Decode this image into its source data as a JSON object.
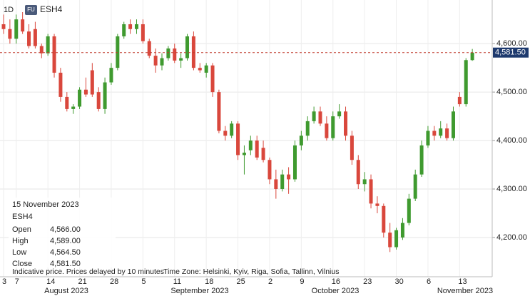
{
  "chart_data": {
    "type": "candlestick",
    "interval": "1D",
    "badge": "FU",
    "symbol": "ESH4",
    "up_color": "#3f9a2f",
    "down_color": "#d9473c",
    "categories": [
      "3",
      null,
      "7",
      null,
      null,
      null,
      null,
      "14",
      null,
      null,
      null,
      null,
      "21",
      null,
      null,
      null,
      null,
      "28",
      null,
      null,
      null,
      null,
      "5",
      null,
      null,
      null,
      null,
      "11",
      null,
      null,
      null,
      null,
      "18",
      null,
      null,
      null,
      null,
      "25",
      null,
      null,
      null,
      null,
      "2",
      null,
      null,
      null,
      null,
      "9",
      null,
      null,
      null,
      null,
      "16",
      null,
      null,
      null,
      null,
      "23",
      null,
      null,
      null,
      null,
      "30",
      null,
      null,
      null,
      null,
      "6",
      null,
      null,
      null,
      null,
      "13",
      null,
      null
    ],
    "months": [
      "August 2023",
      "September 2023",
      "October 2023",
      "November 2023"
    ],
    "open": [
      4640,
      4630,
      4610,
      4650,
      4625,
      4630,
      4595,
      4580,
      4615,
      4540,
      4490,
      4465,
      4470,
      4505,
      4545,
      4500,
      4465,
      4520,
      4550,
      4615,
      4640,
      4630,
      4640,
      4605,
      4575,
      4555,
      4570,
      4590,
      4565,
      4570,
      4615,
      4550,
      4540,
      4555,
      4500,
      4420,
      4410,
      4435,
      4370,
      4380,
      4400,
      4385,
      4360,
      4320,
      4300,
      4330,
      4320,
      4390,
      4410,
      4440,
      4460,
      4435,
      4405,
      4450,
      4460,
      4410,
      4360,
      4310,
      4320,
      4270,
      4265,
      4210,
      4180,
      4200,
      4230,
      4280,
      4330,
      4390,
      4420,
      4410,
      4425,
      4405,
      4490,
      4475,
      4566
    ],
    "high": [
      4660,
      4650,
      4660,
      4665,
      4640,
      4645,
      4600,
      4620,
      4620,
      4550,
      4500,
      4475,
      4510,
      4530,
      4560,
      4510,
      4530,
      4560,
      4620,
      4645,
      4650,
      4650,
      4650,
      4610,
      4590,
      4580,
      4595,
      4600,
      4580,
      4620,
      4625,
      4560,
      4560,
      4560,
      4505,
      4430,
      4440,
      4440,
      4390,
      4410,
      4410,
      4400,
      4365,
      4340,
      4340,
      4345,
      4400,
      4420,
      4450,
      4470,
      4470,
      4450,
      4460,
      4475,
      4470,
      4420,
      4370,
      4335,
      4330,
      4285,
      4270,
      4230,
      4220,
      4240,
      4290,
      4340,
      4400,
      4430,
      4430,
      4440,
      4435,
      4470,
      4500,
      4570,
      4589
    ],
    "low": [
      4620,
      4600,
      4600,
      4620,
      4590,
      4590,
      4570,
      4575,
      4530,
      4480,
      4460,
      4455,
      4465,
      4490,
      4490,
      4460,
      4455,
      4515,
      4545,
      4610,
      4620,
      4620,
      4600,
      4570,
      4540,
      4545,
      4565,
      4560,
      4550,
      4565,
      4545,
      4540,
      4530,
      4490,
      4415,
      4400,
      4405,
      4360,
      4330,
      4370,
      4360,
      4355,
      4310,
      4280,
      4295,
      4290,
      4315,
      4380,
      4400,
      4435,
      4430,
      4400,
      4400,
      4445,
      4400,
      4350,
      4300,
      4295,
      4260,
      4250,
      4200,
      4170,
      4175,
      4195,
      4225,
      4275,
      4325,
      4385,
      4400,
      4405,
      4400,
      4400,
      4470,
      4470,
      4564.5
    ],
    "close": [
      4630,
      4610,
      4650,
      4625,
      4595,
      4595,
      4580,
      4615,
      4540,
      4490,
      4465,
      4470,
      4505,
      4495,
      4495,
      4465,
      4520,
      4550,
      4615,
      4640,
      4630,
      4640,
      4605,
      4575,
      4555,
      4570,
      4590,
      4565,
      4570,
      4615,
      4550,
      4545,
      4555,
      4500,
      4420,
      4410,
      4435,
      4370,
      4375,
      4400,
      4365,
      4360,
      4320,
      4300,
      4330,
      4320,
      4390,
      4410,
      4440,
      4460,
      4435,
      4405,
      4450,
      4460,
      4410,
      4360,
      4310,
      4320,
      4270,
      4265,
      4210,
      4180,
      4215,
      4230,
      4280,
      4330,
      4390,
      4420,
      4410,
      4425,
      4405,
      4460,
      4475,
      4566,
      4581.5
    ],
    "ylim": [
      4119,
      4690
    ],
    "yticks": [
      {
        "value": 4200,
        "label": "4,200.00"
      },
      {
        "value": 4300,
        "label": "4,300.00"
      },
      {
        "value": 4400,
        "label": "4,400.00"
      },
      {
        "value": 4500,
        "label": "4,500.00"
      },
      {
        "value": 4600,
        "label": "4,600.00"
      }
    ],
    "grid": true,
    "last_price": {
      "value": 4581.5,
      "label": "4,581.50",
      "color": "#1e3a6e",
      "line_color": "#c0392b"
    },
    "info": {
      "date": "15 November 2023",
      "symbol": "ESH4",
      "rows": [
        {
          "label": "Open",
          "value": "4,566.00"
        },
        {
          "label": "High",
          "value": "4,589.00"
        },
        {
          "label": "Low",
          "value": "4,564.50"
        },
        {
          "label": "Close",
          "value": "4,581.50"
        }
      ]
    },
    "notes": [
      "Indicative price. Prices delayed by 10 minutes",
      "Time Zone: Helsinki, Kyiv, Riga, Sofia, Tallinn, Vilnius"
    ]
  }
}
